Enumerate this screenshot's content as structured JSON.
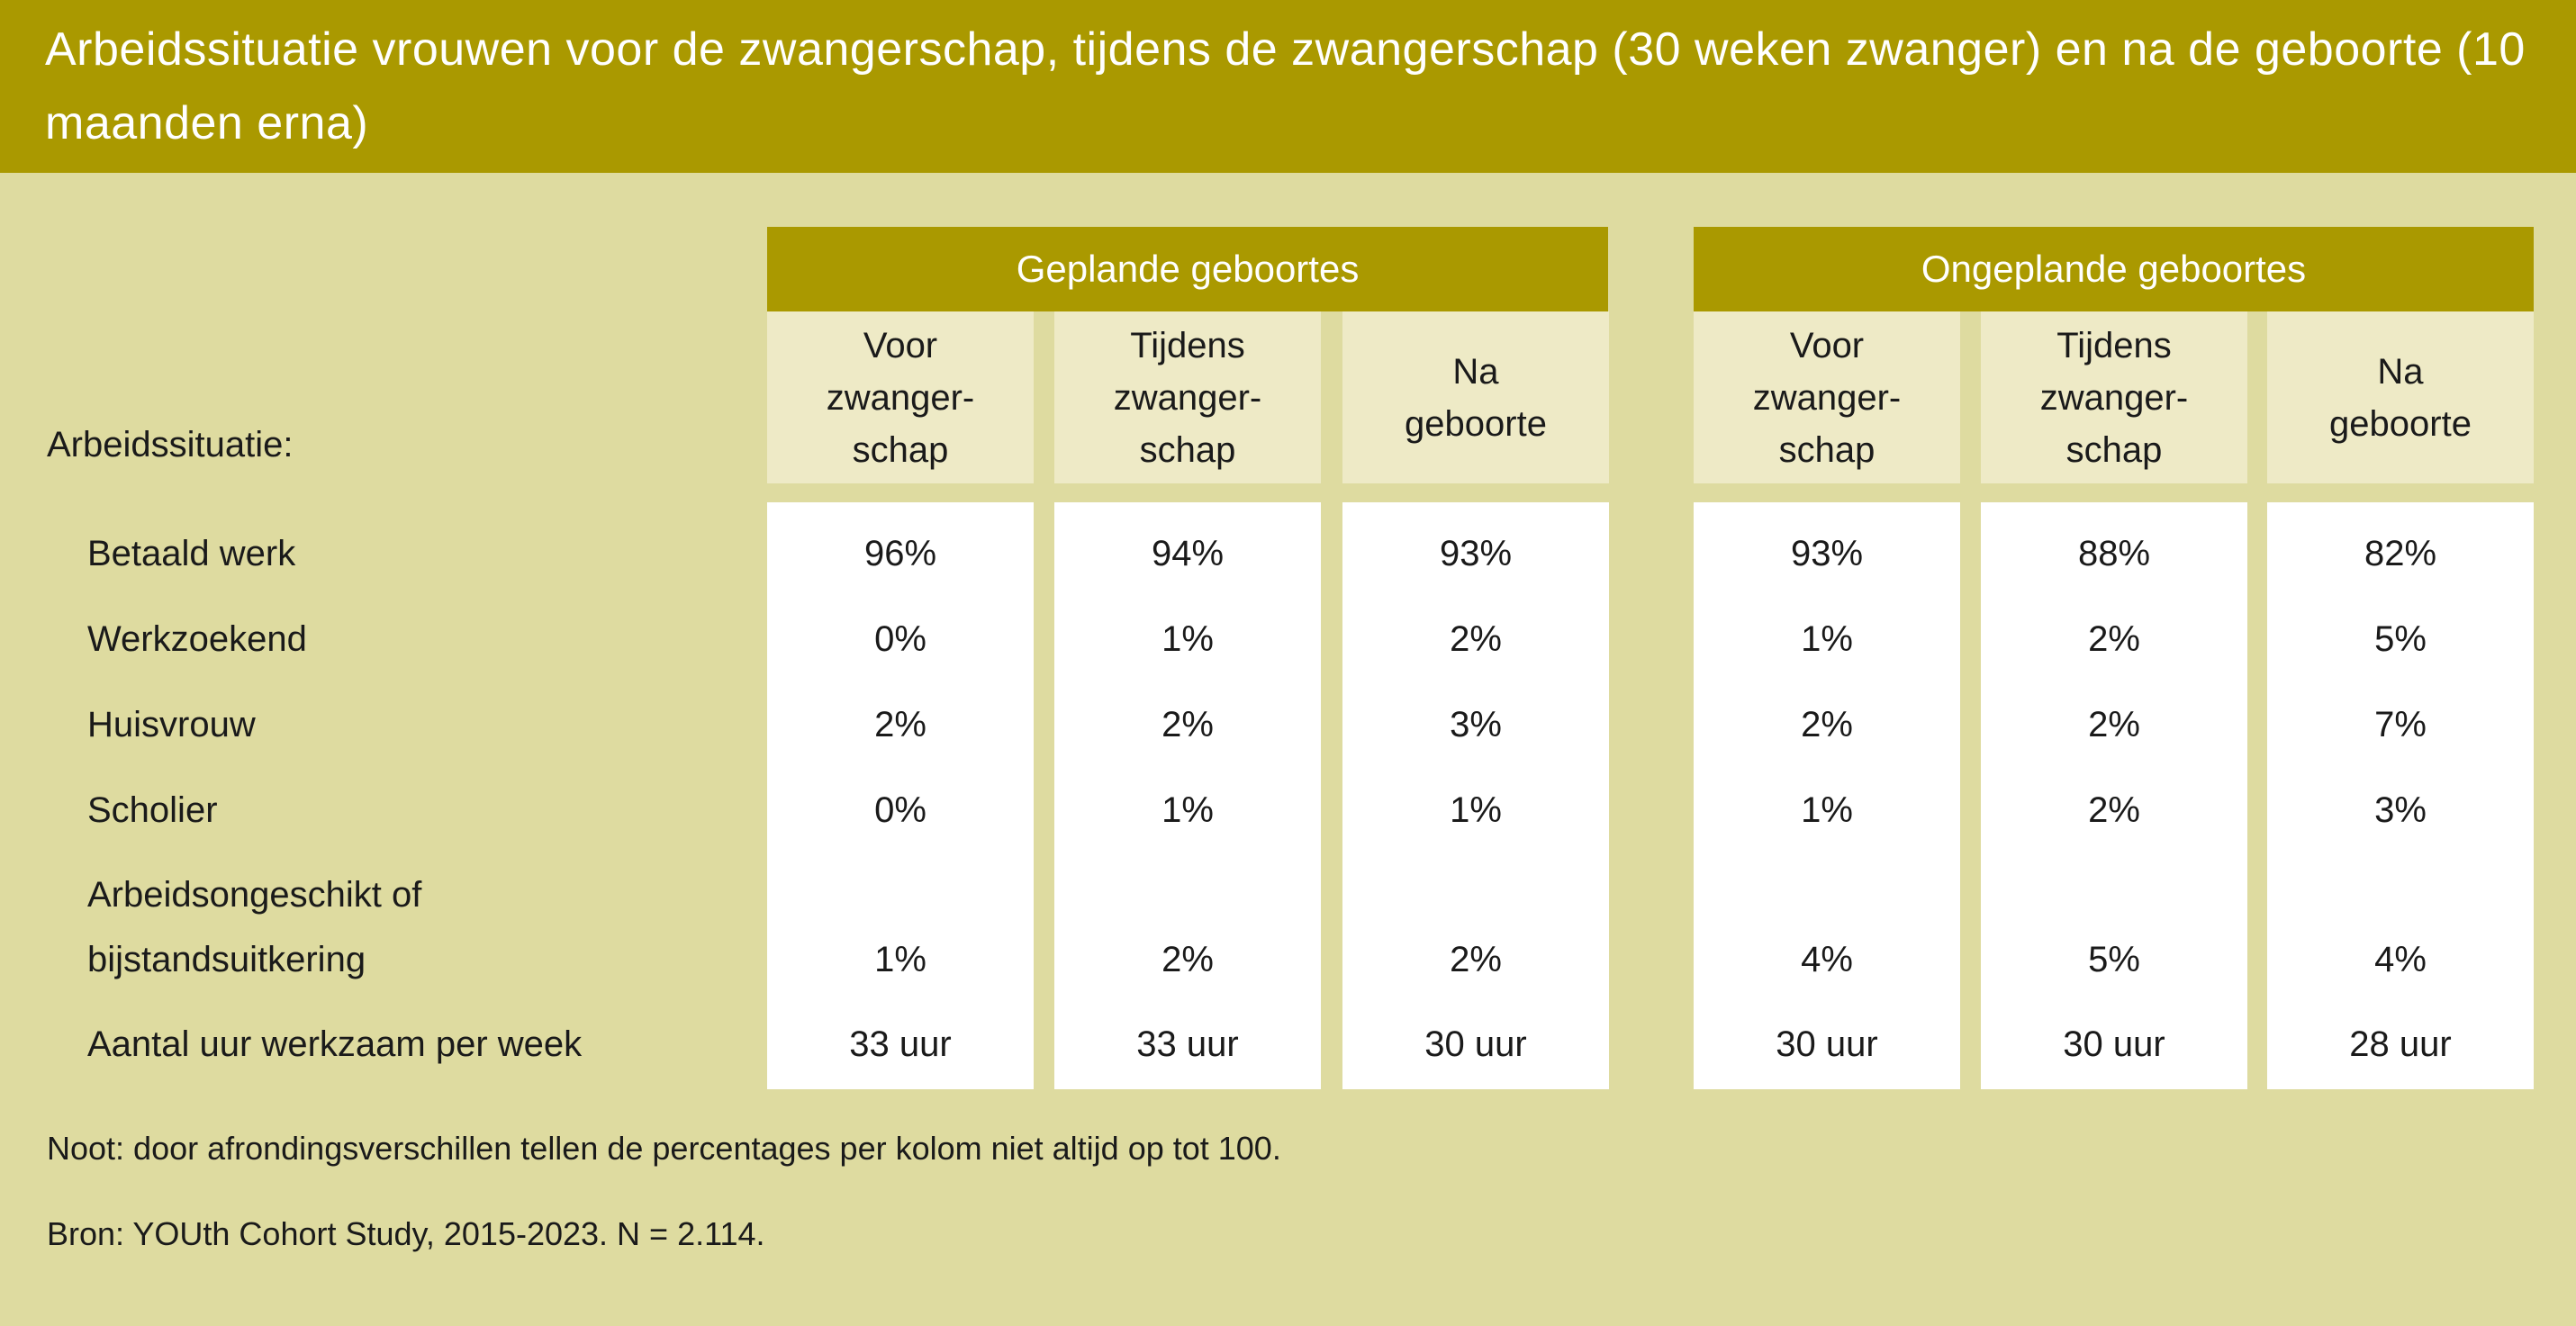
{
  "title": "Arbeidssituatie vrouwen voor de zwangerschap, tijdens de zwangerschap (30 weken zwanger) en na de geboorte (10 maanden erna)",
  "row_header": "Arbeidssituatie:",
  "groups": [
    {
      "label": "Geplande geboortes",
      "columns": [
        "Voor\nzwanger-\nschap",
        "Tijdens\nzwanger-\nschap",
        "Na\ngeboorte"
      ]
    },
    {
      "label": "Ongeplande geboortes",
      "columns": [
        "Voor\nzwanger-\nschap",
        "Tijdens\nzwanger-\nschap",
        "Na\ngeboorte"
      ]
    }
  ],
  "rows": [
    {
      "label": "Betaald werk",
      "values": [
        "96%",
        "94%",
        "93%",
        "93%",
        "88%",
        "82%"
      ]
    },
    {
      "label": "Werkzoekend",
      "values": [
        "0%",
        "1%",
        "2%",
        "1%",
        "2%",
        "5%"
      ]
    },
    {
      "label": "Huisvrouw",
      "values": [
        "2%",
        "2%",
        "3%",
        "2%",
        "2%",
        "7%"
      ]
    },
    {
      "label": "Scholier",
      "values": [
        "0%",
        "1%",
        "1%",
        "1%",
        "2%",
        "3%"
      ]
    },
    {
      "label": "Arbeidsongeschikt of\nbijstandsuitkering",
      "values": [
        "1%",
        "2%",
        "2%",
        "4%",
        "5%",
        "4%"
      ]
    },
    {
      "label": "Aantal uur werkzaam per week",
      "values": [
        "33 uur",
        "33 uur",
        "30 uur",
        "30 uur",
        "30 uur",
        "28 uur"
      ]
    }
  ],
  "note": "Noot: door afrondingsverschillen tellen de percentages per kolom niet altijd op tot 100.",
  "source": "Bron: YOUth Cohort Study, 2015-2023. N = 2.114.",
  "colors": {
    "header": "#aa9900",
    "background": "#dedba0",
    "subheader": "#eeeac6",
    "cell": "#ffffff"
  }
}
